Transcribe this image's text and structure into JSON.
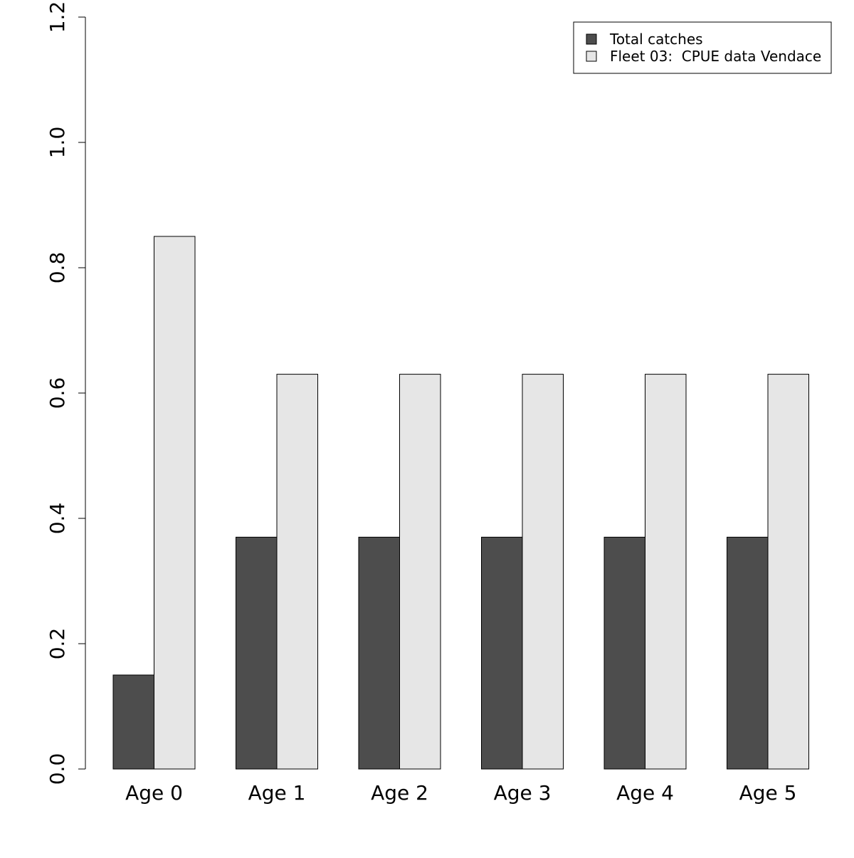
{
  "chart_data": {
    "type": "bar",
    "title": "",
    "xlabel": "",
    "ylabel": "",
    "categories": [
      "Age 0",
      "Age 1",
      "Age 2",
      "Age 3",
      "Age 4",
      "Age 5"
    ],
    "series": [
      {
        "name": "Total catches",
        "color": "#4d4d4d",
        "values": [
          0.15,
          0.37,
          0.37,
          0.37,
          0.37,
          0.37
        ]
      },
      {
        "name": "Fleet 03:  CPUE data Vendace",
        "color": "#e6e6e6",
        "values": [
          0.85,
          0.63,
          0.63,
          0.63,
          0.63,
          0.63
        ]
      }
    ],
    "ylim": [
      0,
      1.2
    ],
    "yticks": [
      "0.0",
      "0.2",
      "0.4",
      "0.6",
      "0.8",
      "1.0",
      "1.2"
    ],
    "grid": false,
    "legend_position": "top-right",
    "bar_border_color": "#000000"
  }
}
